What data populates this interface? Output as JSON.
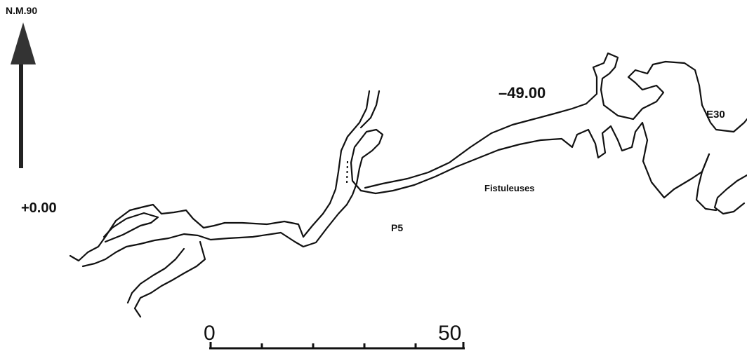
{
  "north_label": "N.M.90",
  "labels": {
    "entrance_depth": "+0.00",
    "deep_depth": "–49.00",
    "e30": "E30",
    "fistuleuses": "Fistuleuses",
    "p5": "P5"
  },
  "scale": {
    "start": "0",
    "end": "50"
  }
}
